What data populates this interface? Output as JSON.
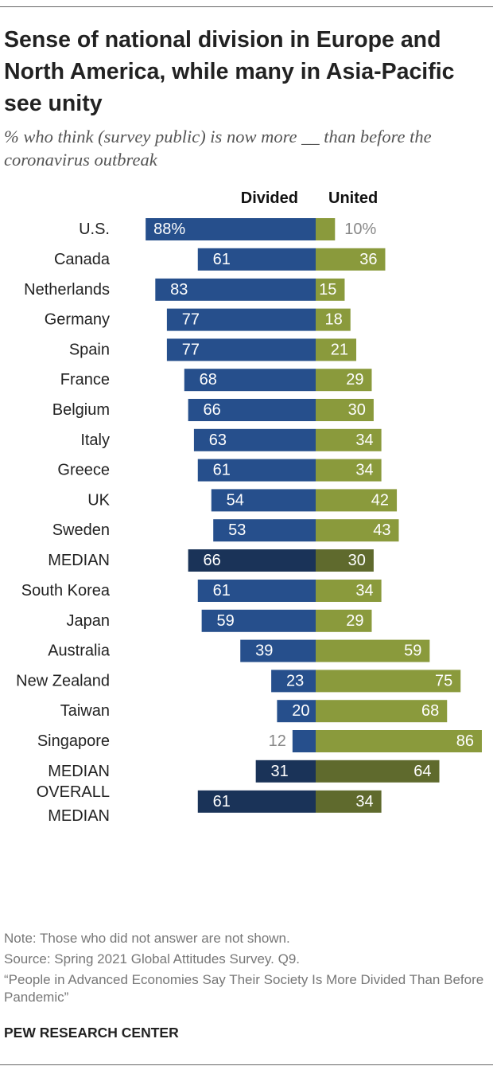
{
  "title": "Sense of national division in Europe and North America, while many in Asia-Pacific see unity",
  "subtitle": "% who think (survey public) is now more __ than before the coronavirus outbreak",
  "footer": {
    "note": "Note: Those who did not answer are not shown.",
    "source": "Source: Spring 2021 Global Attitudes Survey. Q9.",
    "report": "“People in Advanced Economies Say Their Society Is More Divided Than Before Pandemic”",
    "brand": "PEW RESEARCH CENTER"
  },
  "colors": {
    "divided": "#264f8c",
    "divided_median": "#1a3358",
    "united": "#8a9a3c",
    "united_median": "#5f6a2d",
    "label_outside": "#888888"
  },
  "chart_data": {
    "type": "bar",
    "orientation": "diverging-horizontal",
    "series": [
      {
        "name": "Divided",
        "key": "divided"
      },
      {
        "name": "United",
        "key": "united"
      }
    ],
    "groups": [
      {
        "rows": [
          {
            "label": "U.S.",
            "divided": 88,
            "divided_label": "88%",
            "united": 10,
            "united_label": "10%"
          },
          {
            "label": "Canada",
            "divided": 61,
            "divided_label": "61",
            "united": 36,
            "united_label": "36"
          }
        ]
      },
      {
        "rows": [
          {
            "label": "Netherlands",
            "divided": 83,
            "divided_label": "83",
            "united": 15,
            "united_label": "15"
          },
          {
            "label": "Germany",
            "divided": 77,
            "divided_label": "77",
            "united": 18,
            "united_label": "18"
          },
          {
            "label": "Spain",
            "divided": 77,
            "divided_label": "77",
            "united": 21,
            "united_label": "21"
          },
          {
            "label": "France",
            "divided": 68,
            "divided_label": "68",
            "united": 29,
            "united_label": "29"
          },
          {
            "label": "Belgium",
            "divided": 66,
            "divided_label": "66",
            "united": 30,
            "united_label": "30"
          },
          {
            "label": "Italy",
            "divided": 63,
            "divided_label": "63",
            "united": 34,
            "united_label": "34"
          },
          {
            "label": "Greece",
            "divided": 61,
            "divided_label": "61",
            "united": 34,
            "united_label": "34"
          },
          {
            "label": "UK",
            "divided": 54,
            "divided_label": "54",
            "united": 42,
            "united_label": "42"
          },
          {
            "label": "Sweden",
            "divided": 53,
            "divided_label": "53",
            "united": 43,
            "united_label": "43"
          },
          {
            "label": "MEDIAN",
            "divided": 66,
            "divided_label": "66",
            "united": 30,
            "united_label": "30",
            "median": true
          }
        ]
      },
      {
        "rows": [
          {
            "label": "South Korea",
            "divided": 61,
            "divided_label": "61",
            "united": 34,
            "united_label": "34"
          },
          {
            "label": "Japan",
            "divided": 59,
            "divided_label": "59",
            "united": 29,
            "united_label": "29"
          },
          {
            "label": "Australia",
            "divided": 39,
            "divided_label": "39",
            "united": 59,
            "united_label": "59"
          },
          {
            "label": "New Zealand",
            "divided": 23,
            "divided_label": "23",
            "united": 75,
            "united_label": "75"
          },
          {
            "label": "Taiwan",
            "divided": 20,
            "divided_label": "20",
            "united": 68,
            "united_label": "68"
          },
          {
            "label": "Singapore",
            "divided": 12,
            "divided_label": "12",
            "united": 86,
            "united_label": "86"
          },
          {
            "label": "MEDIAN",
            "divided": 31,
            "divided_label": "31",
            "united": 64,
            "united_label": "64",
            "median": true
          }
        ]
      },
      {
        "rows": [
          {
            "label": "OVERALL MEDIAN",
            "label_lines": [
              "OVERALL",
              "MEDIAN"
            ],
            "divided": 61,
            "divided_label": "61",
            "united": 34,
            "united_label": "34",
            "median": true
          }
        ]
      }
    ]
  }
}
